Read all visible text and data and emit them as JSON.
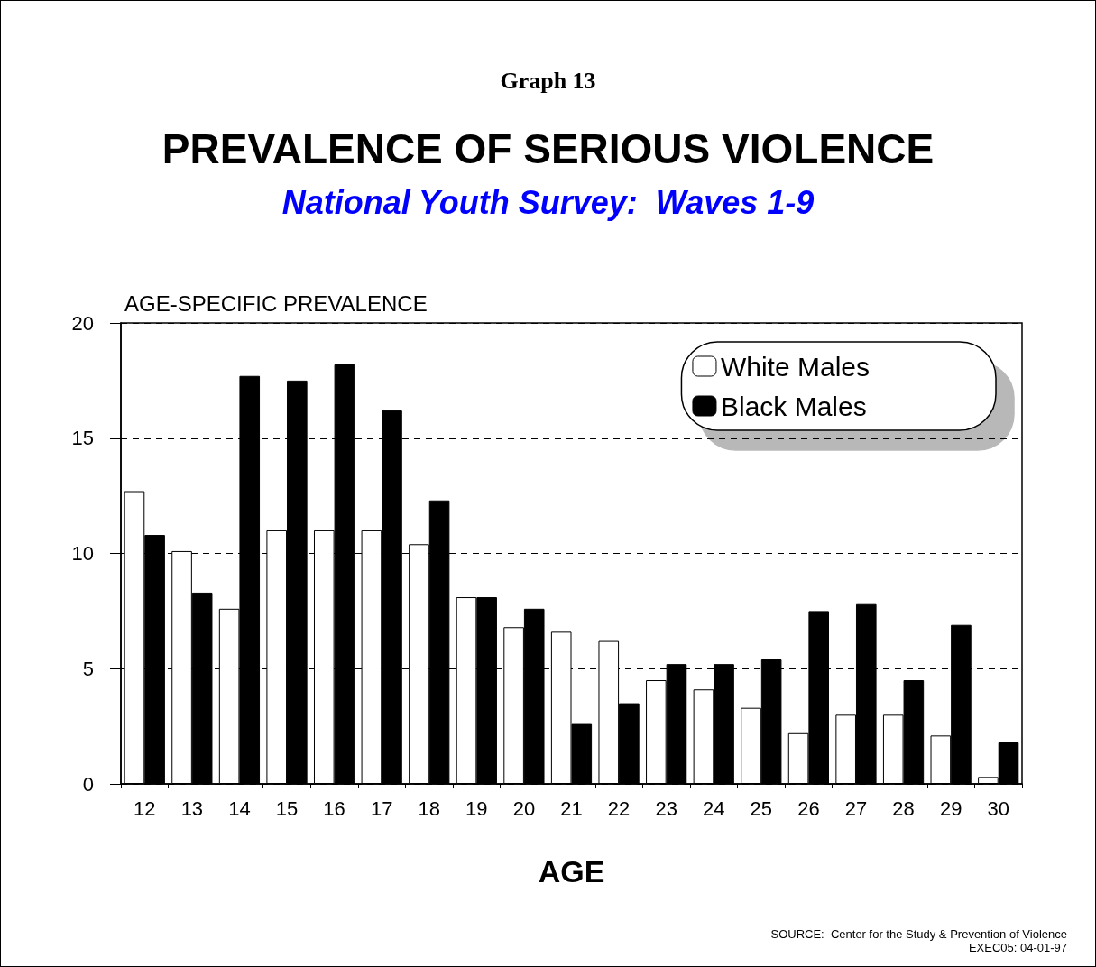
{
  "chart_data": {
    "type": "bar",
    "title": "PREVALENCE OF SERIOUS VIOLENCE",
    "subtitle": "National Youth Survey:  Waves 1-9",
    "annotations": [
      "Graph 13",
      "SOURCE:  Center for the Study & Prevention of Violence",
      "EXEC05: 04-01-97"
    ],
    "ylabel": "AGE-SPECIFIC PREVALENCE",
    "xlabel": "AGE",
    "categories": [
      "12",
      "13",
      "14",
      "15",
      "16",
      "17",
      "18",
      "19",
      "20",
      "21",
      "22",
      "23",
      "24",
      "25",
      "26",
      "27",
      "28",
      "29",
      "30"
    ],
    "series": [
      {
        "name": "White Males",
        "color": "#ffffff",
        "values": [
          12.7,
          10.1,
          7.6,
          11.0,
          11.0,
          11.0,
          10.4,
          8.1,
          6.8,
          6.6,
          6.2,
          4.5,
          4.1,
          3.3,
          2.2,
          3.0,
          3.0,
          2.1,
          0.3
        ]
      },
      {
        "name": "Black Males",
        "color": "#000000",
        "values": [
          10.8,
          8.3,
          17.7,
          17.5,
          18.2,
          16.2,
          12.3,
          8.1,
          7.6,
          2.6,
          3.5,
          5.2,
          5.2,
          5.4,
          7.5,
          7.8,
          4.5,
          6.9,
          1.8
        ]
      }
    ],
    "ylim": [
      0,
      20
    ],
    "yticks": [
      0,
      5,
      10,
      15,
      20
    ],
    "grid": "y",
    "legend": "top right"
  }
}
